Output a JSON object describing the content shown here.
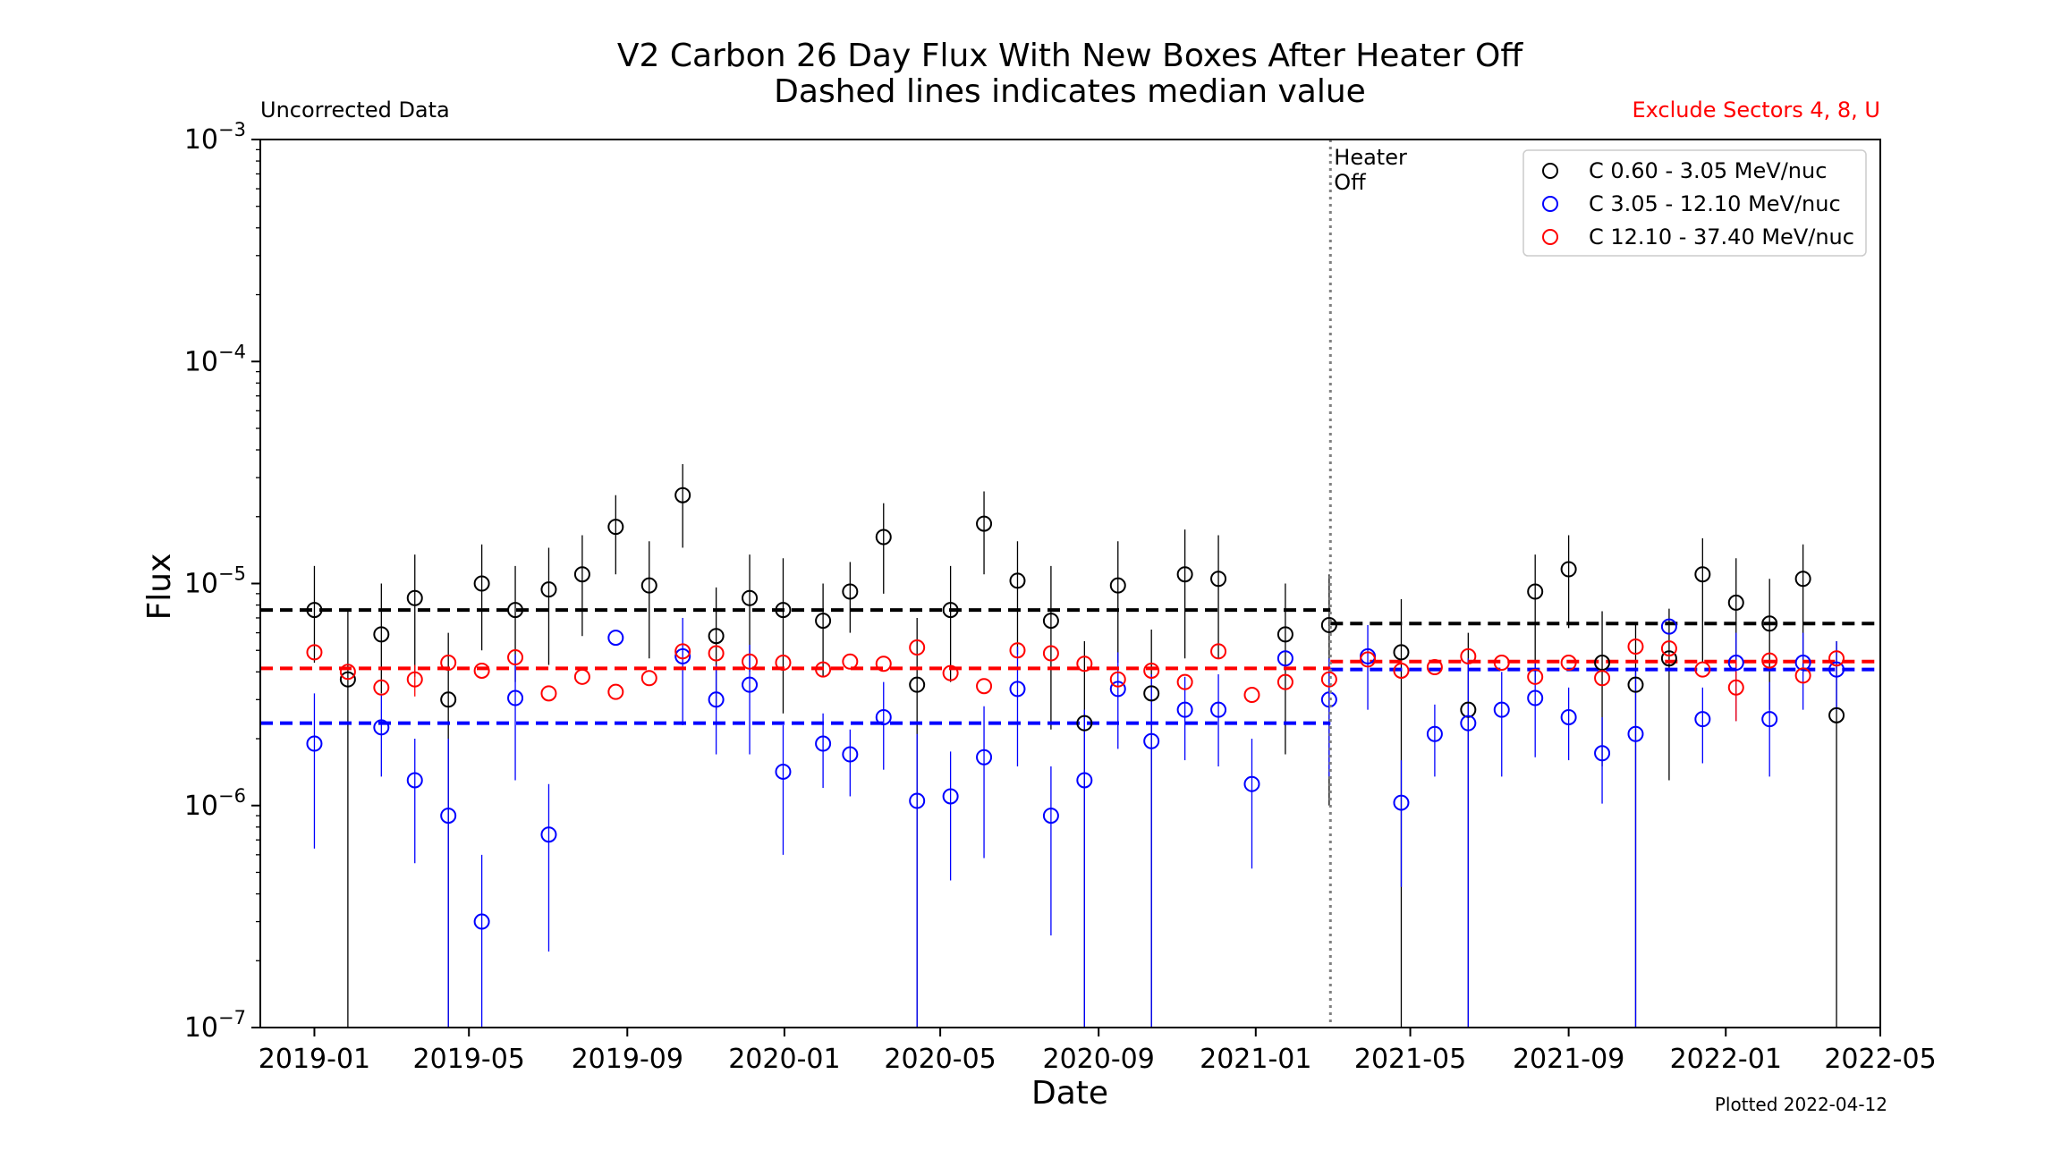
{
  "chart_data": {
    "type": "scatter",
    "title_line1": "V2 Carbon 26 Day Flux With New Boxes After Heater Off",
    "title_line2": "Dashed lines indicates median value",
    "note_left": "Uncorrected Data",
    "note_right": "Exclude Sectors 4, 8, U",
    "note_right_color": "#ff0000",
    "plotted_label": "Plotted 2022-04-12",
    "xlabel": "Date",
    "ylabel": "Flux",
    "yscale": "log",
    "ylim_exp": [
      -7,
      -3
    ],
    "xlim": [
      "2018-11-20",
      "2022-05-01"
    ],
    "x_ticks": [
      "2019-01",
      "2019-05",
      "2019-09",
      "2020-01",
      "2020-05",
      "2020-09",
      "2021-01",
      "2021-05",
      "2021-09",
      "2022-01",
      "2022-05"
    ],
    "y_ticks": [
      {
        "base": "10",
        "exp": "−7",
        "value_exp": -7
      },
      {
        "base": "10",
        "exp": "−6",
        "value_exp": -6
      },
      {
        "base": "10",
        "exp": "−5",
        "value_exp": -5
      },
      {
        "base": "10",
        "exp": "−4",
        "value_exp": -4
      },
      {
        "base": "10",
        "exp": "−3",
        "value_exp": -3
      }
    ],
    "heater_off": {
      "date": "2021-02-28",
      "label_line1": "Heater",
      "label_line2": "Off"
    },
    "dates": [
      "2019-01-01",
      "2019-01-27",
      "2019-02-22",
      "2019-03-20",
      "2019-04-15",
      "2019-05-11",
      "2019-06-06",
      "2019-07-02",
      "2019-07-28",
      "2019-08-23",
      "2019-09-18",
      "2019-10-14",
      "2019-11-09",
      "2019-12-05",
      "2019-12-31",
      "2020-01-31",
      "2020-02-21",
      "2020-03-18",
      "2020-04-13",
      "2020-05-09",
      "2020-06-04",
      "2020-06-30",
      "2020-07-26",
      "2020-08-21",
      "2020-09-16",
      "2020-10-12",
      "2020-11-07",
      "2020-12-03",
      "2020-12-29",
      "2021-01-24",
      "2021-02-27",
      "2021-03-29",
      "2021-04-24",
      "2021-05-20",
      "2021-06-15",
      "2021-07-11",
      "2021-08-06",
      "2021-09-01",
      "2021-09-27",
      "2021-10-23",
      "2021-11-18",
      "2021-12-14",
      "2022-01-09",
      "2022-02-04",
      "2022-03-02",
      "2022-03-28"
    ],
    "series": [
      {
        "name": "C 0.60 - 3.05 MeV/nuc",
        "color": "#000000",
        "values": [
          7.6e-06,
          3.7e-06,
          5.9e-06,
          8.6e-06,
          3e-06,
          1e-05,
          7.6e-06,
          9.4e-06,
          1.1e-05,
          1.8e-05,
          9.8e-06,
          2.5e-05,
          5.8e-06,
          8.6e-06,
          7.6e-06,
          6.8e-06,
          9.2e-06,
          1.62e-05,
          3.5e-06,
          7.6e-06,
          1.86e-05,
          1.03e-05,
          6.8e-06,
          2.35e-06,
          9.8e-06,
          3.2e-06,
          1.1e-05,
          1.05e-05,
          null,
          5.9e-06,
          6.5e-06,
          null,
          4.9e-06,
          null,
          2.7e-06,
          null,
          9.2e-06,
          1.16e-05,
          4.4e-06,
          3.5e-06,
          4.6e-06,
          1.1e-05,
          8.2e-06,
          6.6e-06,
          1.05e-05,
          2.55e-06
        ],
        "err_low": [
          4.4e-06,
          1e-07,
          3.2e-06,
          3.8e-06,
          1e-07,
          5e-06,
          3.6e-06,
          4.3e-06,
          5.8e-06,
          1.1e-05,
          4.6e-06,
          1.45e-05,
          2.7e-06,
          4e-06,
          2.6e-06,
          3.8e-06,
          6e-06,
          9e-06,
          1e-07,
          3.6e-06,
          1.1e-05,
          4.8e-06,
          2.2e-06,
          1e-07,
          4.4e-06,
          1e-07,
          4.6e-06,
          4.6e-06,
          null,
          1.7e-06,
          1e-06,
          null,
          1e-07,
          null,
          1e-07,
          null,
          3.6e-06,
          6.3e-06,
          1.5e-06,
          1e-07,
          1.3e-06,
          4.4e-06,
          3.1e-06,
          2.7e-06,
          4e-06,
          1e-07
        ],
        "err_high": [
          1.2e-05,
          7.5e-06,
          1e-05,
          1.35e-05,
          6e-06,
          1.5e-05,
          1.2e-05,
          1.45e-05,
          1.65e-05,
          2.5e-05,
          1.55e-05,
          3.45e-05,
          9.6e-06,
          1.35e-05,
          1.3e-05,
          1e-05,
          1.25e-05,
          2.3e-05,
          7e-06,
          1.2e-05,
          2.6e-05,
          1.55e-05,
          1.2e-05,
          5.5e-06,
          1.55e-05,
          6.2e-06,
          1.75e-05,
          1.65e-05,
          null,
          1e-05,
          1.1e-05,
          null,
          8.5e-06,
          null,
          6e-06,
          null,
          1.35e-05,
          1.65e-05,
          7.5e-06,
          6.5e-06,
          7.7e-06,
          1.6e-05,
          1.3e-05,
          1.05e-05,
          1.5e-05,
          5.5e-06
        ],
        "median": [
          7.6e-06,
          6.6e-06
        ]
      },
      {
        "name": "C 3.05 - 12.10 MeV/nuc",
        "color": "#0000ff",
        "values": [
          1.9e-06,
          null,
          2.25e-06,
          1.3e-06,
          9e-07,
          3e-07,
          3.05e-06,
          7.4e-07,
          null,
          5.7e-06,
          null,
          4.7e-06,
          3e-06,
          3.5e-06,
          1.42e-06,
          1.9e-06,
          1.7e-06,
          2.5e-06,
          1.05e-06,
          1.1e-06,
          1.65e-06,
          3.35e-06,
          9e-07,
          1.3e-06,
          3.35e-06,
          1.95e-06,
          2.7e-06,
          2.7e-06,
          1.25e-06,
          4.6e-06,
          3e-06,
          4.7e-06,
          1.03e-06,
          2.1e-06,
          2.35e-06,
          2.7e-06,
          3.05e-06,
          2.5e-06,
          1.72e-06,
          2.1e-06,
          6.4e-06,
          2.45e-06,
          4.4e-06,
          2.45e-06,
          4.4e-06,
          4.1e-06
        ],
        "err_low": [
          6.4e-07,
          null,
          1.35e-06,
          5.5e-07,
          1e-07,
          1e-07,
          1.3e-06,
          2.2e-07,
          null,
          null,
          null,
          2.3e-06,
          1.7e-06,
          1.7e-06,
          6e-07,
          1.2e-06,
          1.1e-06,
          1.45e-06,
          1e-07,
          4.6e-07,
          5.8e-07,
          1.5e-06,
          2.6e-07,
          1e-07,
          1.8e-06,
          1e-07,
          1.6e-06,
          1.5e-06,
          5.2e-07,
          null,
          1.35e-06,
          2.7e-06,
          4.3e-07,
          1.35e-06,
          1e-07,
          1.35e-06,
          1.65e-06,
          1.6e-06,
          1.02e-06,
          1e-07,
          null,
          1.55e-06,
          2.4e-06,
          1.35e-06,
          2.7e-06,
          2.7e-06
        ],
        "err_high": [
          3.2e-06,
          null,
          3.15e-06,
          2e-06,
          2e-06,
          6e-07,
          4.8e-06,
          1.25e-06,
          null,
          null,
          null,
          7e-06,
          4.3e-06,
          5.3e-06,
          2.3e-06,
          2.6e-06,
          2.2e-06,
          3.6e-06,
          2.1e-06,
          1.75e-06,
          2.8e-06,
          5.2e-06,
          1.5e-06,
          2.7e-06,
          4.9e-06,
          3.9e-06,
          3.8e-06,
          3.9e-06,
          2e-06,
          null,
          4.6e-06,
          6.5e-06,
          1.6e-06,
          2.85e-06,
          4.6e-06,
          4e-06,
          4.4e-06,
          3.4e-06,
          2.5e-06,
          4e-06,
          8.6e-06,
          3.4e-06,
          6e-06,
          3.6e-06,
          6e-06,
          5.5e-06
        ],
        "median": [
          2.35e-06,
          4.1e-06
        ]
      },
      {
        "name": "C 12.10 - 37.40 MeV/nuc",
        "color": "#ff0000",
        "values": [
          4.9e-06,
          4e-06,
          3.4e-06,
          3.7e-06,
          4.4e-06,
          4.05e-06,
          4.65e-06,
          3.2e-06,
          3.8e-06,
          3.25e-06,
          3.75e-06,
          4.95e-06,
          4.85e-06,
          4.45e-06,
          4.4e-06,
          4.1e-06,
          4.45e-06,
          4.35e-06,
          5.15e-06,
          3.95e-06,
          3.45e-06,
          5e-06,
          4.85e-06,
          4.35e-06,
          3.7e-06,
          4.05e-06,
          3.6e-06,
          4.95e-06,
          3.15e-06,
          3.6e-06,
          3.7e-06,
          4.55e-06,
          4.05e-06,
          4.2e-06,
          4.7e-06,
          4.4e-06,
          3.8e-06,
          4.4e-06,
          3.75e-06,
          5.2e-06,
          5.1e-06,
          4.1e-06,
          3.4e-06,
          4.5e-06,
          3.85e-06,
          4.6e-06
        ],
        "err_low": [
          null,
          null,
          null,
          3.1e-06,
          null,
          null,
          null,
          null,
          null,
          null,
          null,
          null,
          null,
          null,
          null,
          null,
          null,
          null,
          null,
          null,
          null,
          null,
          null,
          null,
          null,
          null,
          null,
          null,
          null,
          null,
          null,
          null,
          null,
          null,
          null,
          null,
          null,
          null,
          null,
          null,
          null,
          null,
          2.4e-06,
          null,
          null,
          null
        ],
        "err_high": [
          null,
          null,
          null,
          4.3e-06,
          null,
          null,
          null,
          null,
          null,
          null,
          null,
          null,
          null,
          null,
          null,
          null,
          null,
          null,
          null,
          null,
          null,
          null,
          null,
          null,
          null,
          null,
          null,
          null,
          null,
          null,
          null,
          null,
          null,
          null,
          null,
          null,
          null,
          null,
          null,
          null,
          null,
          null,
          4.4e-06,
          null,
          null,
          null
        ],
        "median": [
          4.15e-06,
          4.45e-06
        ]
      }
    ]
  }
}
